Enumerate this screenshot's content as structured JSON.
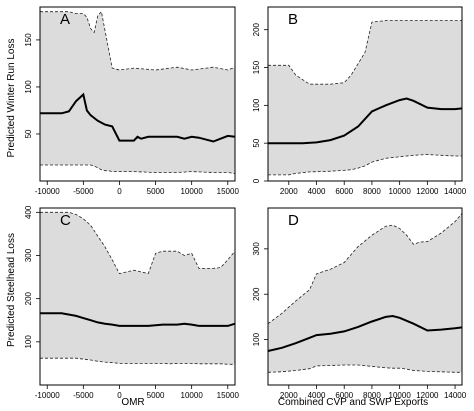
{
  "labels": {
    "ylabel_top": "Predicted Winter Run Loss",
    "ylabel_bottom": "Predicted Steelhead Loss",
    "xlabel_left": "OMR",
    "xlabel_right": "Combined CVP and SWP Exports"
  },
  "chart_data": [
    {
      "panel": "A",
      "type": "area",
      "xlim": [
        -11000,
        16000
      ],
      "ylim": [
        0,
        185
      ],
      "xticks": [
        -10000,
        -5000,
        0,
        5000,
        10000,
        15000
      ],
      "yticks": [
        50,
        100,
        150
      ],
      "series": [
        {
          "role": "band",
          "x": [
            -11000,
            -7000,
            -6000,
            -5000,
            -4500,
            -4000,
            -3500,
            -3000,
            -2500,
            -2000,
            -1500,
            -1000,
            0,
            2000,
            5000,
            8000,
            10000,
            13000,
            15000,
            16000
          ],
          "upper": [
            180,
            180,
            178,
            178,
            174,
            162,
            158,
            176,
            180,
            160,
            140,
            120,
            118,
            120,
            118,
            121,
            118,
            121,
            118,
            121
          ],
          "lower": [
            17,
            17,
            17,
            17,
            17,
            17,
            16,
            14,
            12,
            11,
            11,
            10,
            10,
            10,
            9,
            9,
            10,
            9,
            9,
            8
          ]
        },
        {
          "role": "mean",
          "x": [
            -11000,
            -8000,
            -7000,
            -6000,
            -5000,
            -4500,
            -4000,
            -3500,
            -3000,
            -2000,
            -1000,
            0,
            1000,
            2000,
            2500,
            3000,
            4000,
            6000,
            8000,
            9000,
            10000,
            11000,
            13000,
            14000,
            15000,
            16000
          ],
          "y": [
            72,
            72,
            74,
            85,
            92,
            75,
            70,
            67,
            64,
            60,
            58,
            43,
            43,
            43,
            47,
            45,
            47,
            47,
            47,
            45,
            47,
            46,
            42,
            45,
            48,
            47
          ]
        }
      ]
    },
    {
      "panel": "B",
      "type": "area",
      "xlim": [
        500,
        14500
      ],
      "ylim": [
        0,
        230
      ],
      "xticks": [
        2000,
        4000,
        6000,
        8000,
        10000,
        12000,
        14000
      ],
      "yticks": [
        0,
        50,
        100,
        150,
        200
      ],
      "series": [
        {
          "role": "band",
          "x": [
            500,
            2000,
            2500,
            3500,
            5000,
            6000,
            6500,
            7000,
            7500,
            8000,
            9000,
            10000,
            11000,
            12000,
            13000,
            14000,
            14500
          ],
          "upper": [
            153,
            153,
            140,
            128,
            128,
            130,
            140,
            155,
            170,
            210,
            212,
            212,
            212,
            212,
            212,
            212,
            212
          ],
          "lower": [
            8,
            8,
            10,
            12,
            13,
            14,
            15,
            17,
            20,
            25,
            30,
            32,
            34,
            35,
            34,
            33,
            33
          ]
        },
        {
          "role": "mean",
          "x": [
            500,
            2000,
            3000,
            4000,
            5000,
            6000,
            7000,
            8000,
            9000,
            10000,
            10500,
            11000,
            12000,
            13000,
            14000,
            14500
          ],
          "y": [
            50,
            50,
            50,
            51,
            54,
            60,
            72,
            92,
            100,
            107,
            109,
            106,
            97,
            95,
            95,
            96
          ]
        }
      ]
    },
    {
      "panel": "C",
      "type": "area",
      "xlim": [
        -11000,
        16000
      ],
      "ylim": [
        0,
        410
      ],
      "xticks": [
        -10000,
        -5000,
        0,
        5000,
        10000,
        15000
      ],
      "yticks": [
        100,
        200,
        300,
        400
      ],
      "series": [
        {
          "role": "band",
          "x": [
            -11000,
            -8000,
            -7000,
            -6000,
            -5000,
            -4000,
            -3000,
            -2000,
            -1000,
            0,
            1000,
            2000,
            3000,
            4000,
            5000,
            6000,
            7000,
            8000,
            9000,
            10000,
            11000,
            12000,
            13000,
            14000,
            15000,
            16000
          ],
          "upper": [
            400,
            400,
            400,
            395,
            385,
            370,
            345,
            320,
            290,
            258,
            262,
            266,
            262,
            258,
            305,
            310,
            310,
            310,
            300,
            305,
            270,
            270,
            270,
            272,
            290,
            310
          ],
          "lower": [
            62,
            62,
            62,
            62,
            60,
            58,
            55,
            53,
            52,
            50,
            50,
            50,
            50,
            50,
            50,
            50,
            49,
            50,
            50,
            50,
            49,
            49,
            49,
            49,
            48,
            48
          ]
        },
        {
          "role": "mean",
          "x": [
            -11000,
            -8000,
            -6000,
            -5000,
            -4000,
            -3000,
            -2000,
            -1000,
            0,
            2000,
            4000,
            6000,
            8000,
            9000,
            10000,
            11000,
            13000,
            15000,
            16000
          ],
          "y": [
            166,
            166,
            160,
            155,
            150,
            145,
            142,
            140,
            137,
            137,
            137,
            140,
            140,
            142,
            140,
            137,
            137,
            137,
            142
          ]
        }
      ]
    },
    {
      "panel": "D",
      "type": "area",
      "xlim": [
        500,
        14500
      ],
      "ylim": [
        0,
        390
      ],
      "xticks": [
        2000,
        4000,
        6000,
        8000,
        10000,
        12000,
        14000
      ],
      "yticks": [
        100,
        200,
        300
      ],
      "series": [
        {
          "role": "band",
          "x": [
            500,
            1500,
            2500,
            3500,
            4000,
            5000,
            6000,
            7000,
            8000,
            9000,
            9500,
            10000,
            10500,
            11000,
            11500,
            12000,
            13000,
            14000,
            14500
          ],
          "upper": [
            135,
            158,
            185,
            210,
            245,
            255,
            270,
            305,
            330,
            350,
            352,
            345,
            330,
            310,
            315,
            316,
            335,
            360,
            378
          ],
          "lower": [
            28,
            29,
            32,
            36,
            42,
            43,
            44,
            44,
            41,
            38,
            37,
            37,
            35,
            32,
            31,
            30,
            29,
            28,
            28
          ]
        },
        {
          "role": "mean",
          "x": [
            500,
            1500,
            2500,
            3500,
            4000,
            5000,
            6000,
            7000,
            8000,
            9000,
            9500,
            10000,
            11000,
            12000,
            13000,
            14000,
            14500
          ],
          "y": [
            75,
            82,
            92,
            104,
            110,
            113,
            118,
            128,
            140,
            150,
            152,
            148,
            135,
            120,
            122,
            125,
            127
          ]
        }
      ]
    }
  ]
}
